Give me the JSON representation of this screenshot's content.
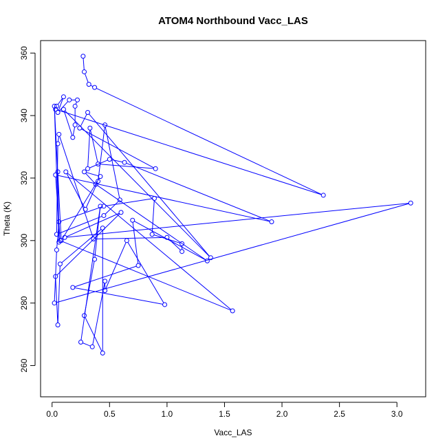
{
  "chart_data": {
    "type": "line",
    "title": "ATOM4 Northbound Vacc_LAS",
    "xlabel": "Vacc_LAS",
    "ylabel": "Theta (K)",
    "xlim": [
      -0.1,
      3.25
    ],
    "ylim": [
      250,
      364
    ],
    "x_ticks": [
      0.0,
      0.5,
      1.0,
      1.5,
      2.0,
      2.5,
      3.0
    ],
    "x_tick_labels": [
      "0.0",
      "0.5",
      "1.0",
      "1.5",
      "2.0",
      "2.5",
      "3.0"
    ],
    "y_ticks": [
      260,
      280,
      300,
      320,
      340,
      360
    ],
    "y_tick_labels": [
      "260",
      "280",
      "300",
      "320",
      "340",
      "360"
    ],
    "grid": false,
    "series_color": "#0000ff",
    "markers": "open-circle",
    "x": [
      0.27,
      0.28,
      0.32,
      0.37,
      2.36,
      0.03,
      0.04,
      0.1,
      0.05,
      0.15,
      0.22,
      0.2,
      0.2,
      0.18,
      0.1,
      1.38,
      0.31,
      0.24,
      0.9,
      0.4,
      0.33,
      0.31,
      0.5,
      0.63,
      1.91,
      0.03,
      0.07,
      1.57,
      0.12,
      0.29,
      0.4,
      0.46,
      0.59,
      0.45,
      0.04,
      0.05,
      0.06,
      0.36,
      1.0,
      1.13,
      1.13,
      0.87,
      0.89,
      0.45,
      0.06,
      0.04,
      0.02,
      3.12,
      0.11,
      0.6,
      0.03,
      0.05,
      0.07,
      0.44,
      0.44,
      0.28,
      0.37,
      0.42,
      0.25,
      0.35,
      0.46,
      0.46,
      0.65,
      0.98,
      0.18,
      0.75,
      0.7,
      1.35,
      0.38,
      0.28,
      0.42,
      0.08,
      0.02,
      0.06,
      0.05
    ],
    "y": [
      359,
      354,
      350,
      349,
      314.5,
      342,
      343,
      346,
      341,
      345,
      345,
      343,
      337,
      333,
      342,
      294.5,
      341,
      336,
      323,
      324.5,
      336,
      323,
      326,
      325,
      306,
      321,
      300,
      277.5,
      322,
      310,
      319,
      337,
      313,
      308,
      302,
      331,
      334,
      300.5,
      301,
      296.5,
      299,
      302,
      313.5,
      311,
      306,
      297,
      280,
      312,
      301,
      309,
      288.5,
      273,
      292.5,
      304,
      264,
      276,
      294,
      311,
      267.5,
      266,
      287,
      284,
      300,
      279.5,
      285,
      292,
      306.5,
      293.5,
      318,
      322,
      320.5,
      300,
      343,
      299.5,
      322
    ]
  }
}
